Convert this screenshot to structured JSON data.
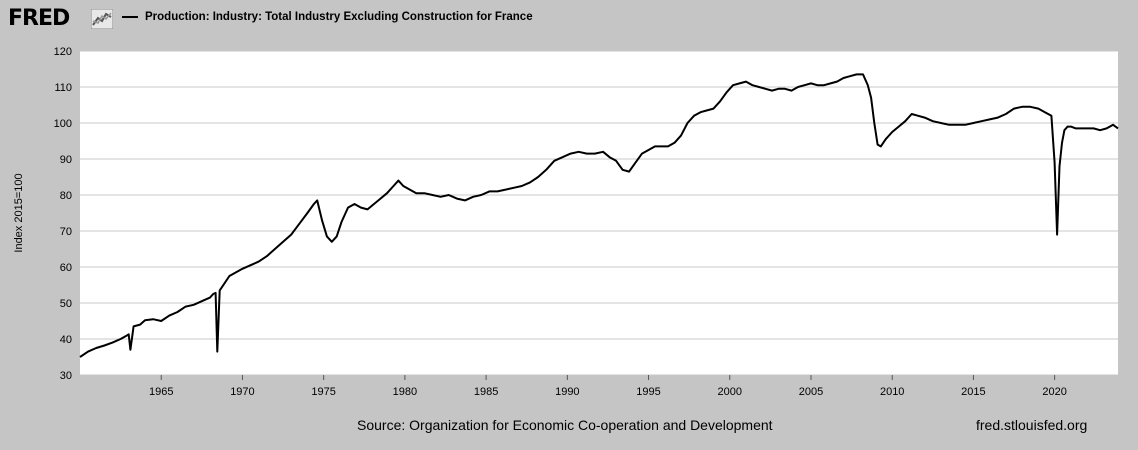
{
  "header": {
    "logo_text": "FRED",
    "logo_icon": "chart-line-icon",
    "legend_label": "Production: Industry: Total Industry Excluding Construction for France",
    "series_color": "#000000"
  },
  "footer": {
    "source": "Source: Organization for Economic Co-operation and Development",
    "url": "fred.stlouisfed.org"
  },
  "chart_data": {
    "type": "line",
    "title": "",
    "xlabel": "",
    "ylabel": "Index 2015=100",
    "xlim": [
      1960.0,
      2023.9
    ],
    "ylim": [
      30,
      120
    ],
    "x_ticks": [
      1965,
      1970,
      1975,
      1980,
      1985,
      1990,
      1995,
      2000,
      2005,
      2010,
      2015,
      2020
    ],
    "y_ticks": [
      30,
      40,
      50,
      60,
      70,
      80,
      90,
      100,
      110,
      120
    ],
    "grid": true,
    "legend_position": "top-left",
    "series": [
      {
        "name": "Production: Industry: Total Industry Excluding Construction for France",
        "color": "#000000",
        "x": [
          1960.0,
          1960.5,
          1961.0,
          1961.5,
          1962.0,
          1962.5,
          1962.9,
          1963.0,
          1963.1,
          1963.3,
          1963.7,
          1964.0,
          1964.5,
          1965.0,
          1965.5,
          1966.0,
          1966.5,
          1967.0,
          1967.5,
          1968.0,
          1968.2,
          1968.35,
          1968.45,
          1968.6,
          1968.9,
          1969.2,
          1969.6,
          1970.0,
          1970.5,
          1971.0,
          1971.5,
          1972.0,
          1972.5,
          1973.0,
          1973.5,
          1974.0,
          1974.4,
          1974.6,
          1974.9,
          1975.2,
          1975.5,
          1975.8,
          1976.1,
          1976.5,
          1976.9,
          1977.3,
          1977.7,
          1978.1,
          1978.5,
          1978.9,
          1979.3,
          1979.6,
          1979.9,
          1980.3,
          1980.7,
          1981.2,
          1981.7,
          1982.2,
          1982.7,
          1983.2,
          1983.7,
          1984.2,
          1984.7,
          1985.2,
          1985.7,
          1986.2,
          1986.7,
          1987.2,
          1987.7,
          1988.2,
          1988.7,
          1989.2,
          1989.7,
          1990.2,
          1990.7,
          1991.2,
          1991.7,
          1992.2,
          1992.6,
          1993.0,
          1993.4,
          1993.8,
          1994.2,
          1994.6,
          1995.0,
          1995.4,
          1995.8,
          1996.2,
          1996.6,
          1997.0,
          1997.4,
          1997.8,
          1998.2,
          1998.6,
          1999.0,
          1999.4,
          1999.8,
          2000.2,
          2000.6,
          2001.0,
          2001.4,
          2001.8,
          2002.2,
          2002.6,
          2003.0,
          2003.4,
          2003.8,
          2004.2,
          2004.6,
          2005.0,
          2005.4,
          2005.8,
          2006.2,
          2006.6,
          2007.0,
          2007.4,
          2007.8,
          2008.2,
          2008.5,
          2008.7,
          2008.9,
          2009.1,
          2009.3,
          2009.6,
          2010.0,
          2010.4,
          2010.8,
          2011.2,
          2011.6,
          2012.0,
          2012.5,
          2013.0,
          2013.5,
          2014.0,
          2014.5,
          2015.0,
          2015.5,
          2016.0,
          2016.5,
          2017.0,
          2017.5,
          2018.0,
          2018.5,
          2019.0,
          2019.4,
          2019.8,
          2020.0,
          2020.15,
          2020.3,
          2020.45,
          2020.6,
          2020.8,
          2021.0,
          2021.3,
          2021.6,
          2022.0,
          2022.4,
          2022.8,
          2023.2,
          2023.6,
          2023.9
        ],
        "values": [
          35,
          36.5,
          37.5,
          38.2,
          39,
          40,
          41,
          41.3,
          37,
          43.5,
          44,
          45.2,
          45.5,
          45,
          46.5,
          47.5,
          49,
          49.5,
          50.5,
          51.5,
          52.5,
          52.8,
          36.5,
          53.5,
          55.5,
          57.5,
          58.5,
          59.5,
          60.5,
          61.5,
          63,
          65,
          67,
          69,
          72,
          75,
          77.5,
          78.5,
          73,
          68.5,
          67,
          68.5,
          72.5,
          76.5,
          77.5,
          76.5,
          76,
          77.5,
          79,
          80.5,
          82.5,
          84,
          82.5,
          81.5,
          80.5,
          80.5,
          80,
          79.5,
          80,
          79,
          78.5,
          79.5,
          80,
          81,
          81,
          81.5,
          82,
          82.5,
          83.5,
          85,
          87,
          89.5,
          90.5,
          91.5,
          92,
          91.5,
          91.5,
          92,
          90.5,
          89.5,
          87,
          86.5,
          89,
          91.5,
          92.5,
          93.5,
          93.5,
          93.5,
          94.5,
          96.5,
          100,
          102,
          103,
          103.5,
          104,
          106,
          108.5,
          110.5,
          111,
          111.5,
          110.5,
          110,
          109.5,
          109,
          109.5,
          109.5,
          109,
          110,
          110.5,
          111,
          110.5,
          110.5,
          111,
          111.5,
          112.5,
          113,
          113.5,
          113.5,
          110.5,
          107,
          100,
          94,
          93.5,
          95.5,
          97.5,
          99,
          100.5,
          102.5,
          102,
          101.5,
          100.5,
          100,
          99.5,
          99.5,
          99.5,
          100,
          100.5,
          101,
          101.5,
          102.5,
          104,
          104.5,
          104.5,
          104,
          103,
          102,
          89,
          69,
          88,
          94.5,
          98,
          99,
          99,
          98.5,
          98.5,
          98.5,
          98.5,
          98,
          98.5,
          99.5,
          98.5
        ]
      }
    ]
  }
}
